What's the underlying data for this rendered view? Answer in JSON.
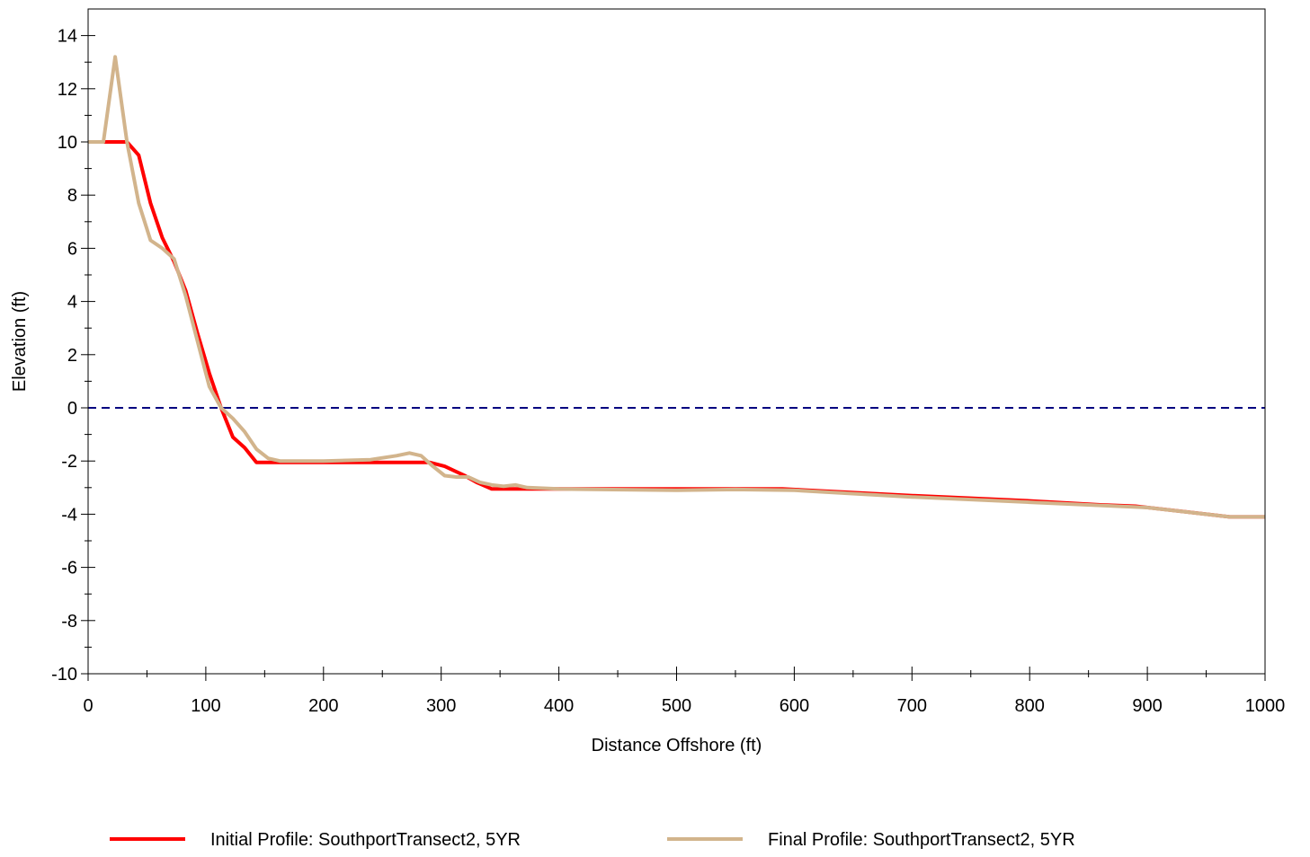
{
  "chart_data": {
    "type": "line",
    "title": "",
    "xlabel": "Distance Offshore (ft)",
    "ylabel": "Elevation (ft)",
    "xlim": [
      0,
      1000
    ],
    "ylim": [
      -10,
      15
    ],
    "x_ticks": [
      0,
      100,
      200,
      300,
      400,
      500,
      600,
      700,
      800,
      900,
      1000
    ],
    "y_ticks": [
      -10,
      -8,
      -6,
      -4,
      -2,
      0,
      2,
      4,
      6,
      8,
      10,
      12,
      14
    ],
    "x_minor_step": 50,
    "y_minor_step": 1,
    "grid": false,
    "legend_position": "bottom",
    "reference_line": {
      "y": 0,
      "color": "#000080",
      "style": "dashed"
    },
    "series": [
      {
        "name": "Initial Profile: SouthportTransect2, 5YR",
        "color": "#ff0000",
        "points": [
          [
            0,
            10.0
          ],
          [
            12,
            10.0
          ],
          [
            22,
            10.0
          ],
          [
            33,
            10.0
          ],
          [
            43,
            9.5
          ],
          [
            53,
            7.7
          ],
          [
            63,
            6.4
          ],
          [
            73,
            5.5
          ],
          [
            83,
            4.4
          ],
          [
            93,
            2.8
          ],
          [
            103,
            1.3
          ],
          [
            113,
            0.0
          ],
          [
            123,
            -1.1
          ],
          [
            133,
            -1.5
          ],
          [
            143,
            -2.05
          ],
          [
            160,
            -2.05
          ],
          [
            200,
            -2.05
          ],
          [
            250,
            -2.05
          ],
          [
            290,
            -2.05
          ],
          [
            303,
            -2.2
          ],
          [
            320,
            -2.55
          ],
          [
            330,
            -2.8
          ],
          [
            343,
            -3.05
          ],
          [
            400,
            -3.05
          ],
          [
            500,
            -3.05
          ],
          [
            590,
            -3.05
          ],
          [
            700,
            -3.3
          ],
          [
            800,
            -3.5
          ],
          [
            860,
            -3.65
          ],
          [
            890,
            -3.7
          ],
          [
            930,
            -3.9
          ],
          [
            970,
            -4.1
          ],
          [
            1000,
            -4.1
          ]
        ]
      },
      {
        "name": "Final Profile: SouthportTransect2, 5YR",
        "color": "#d2b48c",
        "points": [
          [
            0,
            10.0
          ],
          [
            13,
            10.0
          ],
          [
            23,
            13.2
          ],
          [
            33,
            10.0
          ],
          [
            43,
            7.7
          ],
          [
            53,
            6.3
          ],
          [
            63,
            6.0
          ],
          [
            73,
            5.6
          ],
          [
            83,
            4.2
          ],
          [
            93,
            2.5
          ],
          [
            103,
            0.8
          ],
          [
            113,
            0.0
          ],
          [
            123,
            -0.4
          ],
          [
            133,
            -0.9
          ],
          [
            143,
            -1.55
          ],
          [
            153,
            -1.9
          ],
          [
            163,
            -2.0
          ],
          [
            200,
            -2.0
          ],
          [
            240,
            -1.95
          ],
          [
            262,
            -1.8
          ],
          [
            273,
            -1.7
          ],
          [
            283,
            -1.8
          ],
          [
            293,
            -2.2
          ],
          [
            303,
            -2.55
          ],
          [
            313,
            -2.6
          ],
          [
            323,
            -2.6
          ],
          [
            333,
            -2.8
          ],
          [
            343,
            -2.9
          ],
          [
            353,
            -2.95
          ],
          [
            363,
            -2.9
          ],
          [
            373,
            -3.0
          ],
          [
            400,
            -3.05
          ],
          [
            500,
            -3.1
          ],
          [
            550,
            -3.07
          ],
          [
            600,
            -3.1
          ],
          [
            700,
            -3.35
          ],
          [
            800,
            -3.55
          ],
          [
            900,
            -3.75
          ],
          [
            970,
            -4.1
          ],
          [
            1000,
            -4.1
          ]
        ]
      }
    ]
  }
}
